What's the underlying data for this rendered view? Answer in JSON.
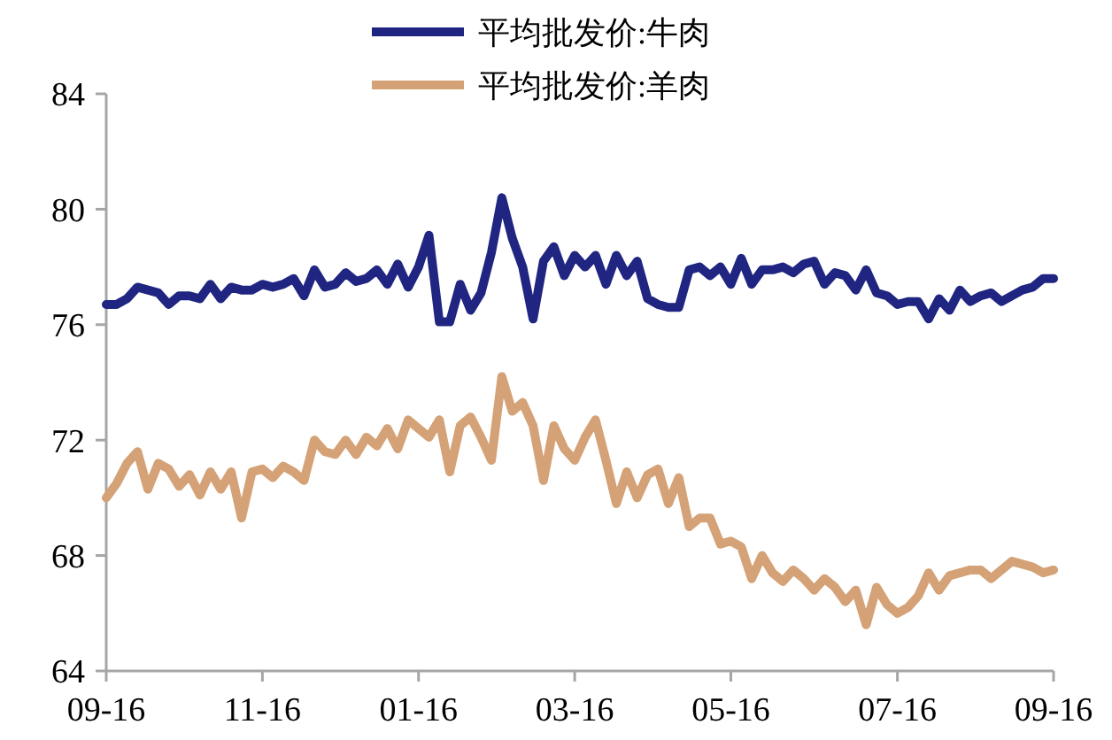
{
  "chart_data": {
    "type": "line",
    "legend": "top",
    "grid": false,
    "marker": "none",
    "line_style": "solid",
    "categories": [
      "09-16",
      null,
      null,
      null,
      null,
      null,
      null,
      null,
      null,
      null,
      null,
      null,
      null,
      null,
      null,
      "11-16",
      null,
      null,
      null,
      null,
      null,
      null,
      null,
      null,
      null,
      null,
      null,
      null,
      null,
      null,
      "01-16",
      null,
      null,
      null,
      null,
      null,
      null,
      null,
      null,
      null,
      null,
      null,
      null,
      null,
      null,
      "03-16",
      null,
      null,
      null,
      null,
      null,
      null,
      null,
      null,
      null,
      null,
      null,
      null,
      null,
      null,
      "05-16",
      null,
      null,
      null,
      null,
      null,
      null,
      null,
      null,
      null,
      null,
      null,
      null,
      null,
      null,
      null,
      "07-16",
      null,
      null,
      null,
      null,
      null,
      null,
      null,
      null,
      null,
      null,
      null,
      null,
      null,
      null,
      "09-16"
    ],
    "ylim": [
      64,
      84
    ],
    "yticks": [
      64,
      68,
      72,
      76,
      80,
      84
    ],
    "series": [
      {
        "name": "平均批发价:牛肉",
        "color": "#1f2580",
        "values": [
          76.7,
          76.7,
          76.9,
          77.3,
          77.2,
          77.1,
          76.7,
          77.0,
          77.0,
          76.9,
          77.4,
          76.9,
          77.3,
          77.2,
          77.2,
          77.4,
          77.3,
          77.4,
          77.6,
          77.0,
          77.9,
          77.3,
          77.4,
          77.8,
          77.5,
          77.6,
          77.9,
          77.4,
          78.1,
          77.3,
          78.0,
          79.1,
          76.1,
          76.1,
          77.4,
          76.5,
          77.1,
          78.5,
          80.4,
          79.0,
          78.0,
          76.2,
          78.2,
          78.7,
          77.7,
          78.4,
          78.0,
          78.4,
          77.4,
          78.4,
          77.7,
          78.2,
          76.9,
          76.7,
          76.6,
          76.6,
          77.9,
          78.0,
          77.7,
          78.0,
          77.4,
          78.3,
          77.4,
          77.9,
          77.9,
          78.0,
          77.8,
          78.1,
          78.2,
          77.4,
          77.8,
          77.7,
          77.2,
          77.9,
          77.1,
          77.0,
          76.7,
          76.8,
          76.8,
          76.2,
          76.9,
          76.5,
          77.2,
          76.8,
          77.0,
          77.1,
          76.8,
          77.0,
          77.2,
          77.3,
          77.6,
          77.6
        ]
      },
      {
        "name": "平均批发价:羊肉",
        "color": "#d4a276",
        "values": [
          70.0,
          70.5,
          71.2,
          71.6,
          70.3,
          71.2,
          71.0,
          70.4,
          70.8,
          70.1,
          70.9,
          70.3,
          70.9,
          69.3,
          70.9,
          71.0,
          70.7,
          71.1,
          70.9,
          70.6,
          72.0,
          71.6,
          71.5,
          72.0,
          71.5,
          72.1,
          71.8,
          72.4,
          71.7,
          72.7,
          72.4,
          72.1,
          72.7,
          70.9,
          72.5,
          72.8,
          72.1,
          71.3,
          74.2,
          73.0,
          73.3,
          72.5,
          70.6,
          72.5,
          71.7,
          71.3,
          72.1,
          72.7,
          71.3,
          69.8,
          70.9,
          70.0,
          70.8,
          71.0,
          69.8,
          70.7,
          69.0,
          69.3,
          69.3,
          68.4,
          68.5,
          68.3,
          67.2,
          68.0,
          67.4,
          67.1,
          67.5,
          67.2,
          66.8,
          67.2,
          66.9,
          66.4,
          66.8,
          65.6,
          66.9,
          66.3,
          66.0,
          66.2,
          66.6,
          67.4,
          66.8,
          67.3,
          67.4,
          67.5,
          67.5,
          67.2,
          67.5,
          67.8,
          67.7,
          67.6,
          67.4,
          67.5
        ]
      }
    ]
  }
}
